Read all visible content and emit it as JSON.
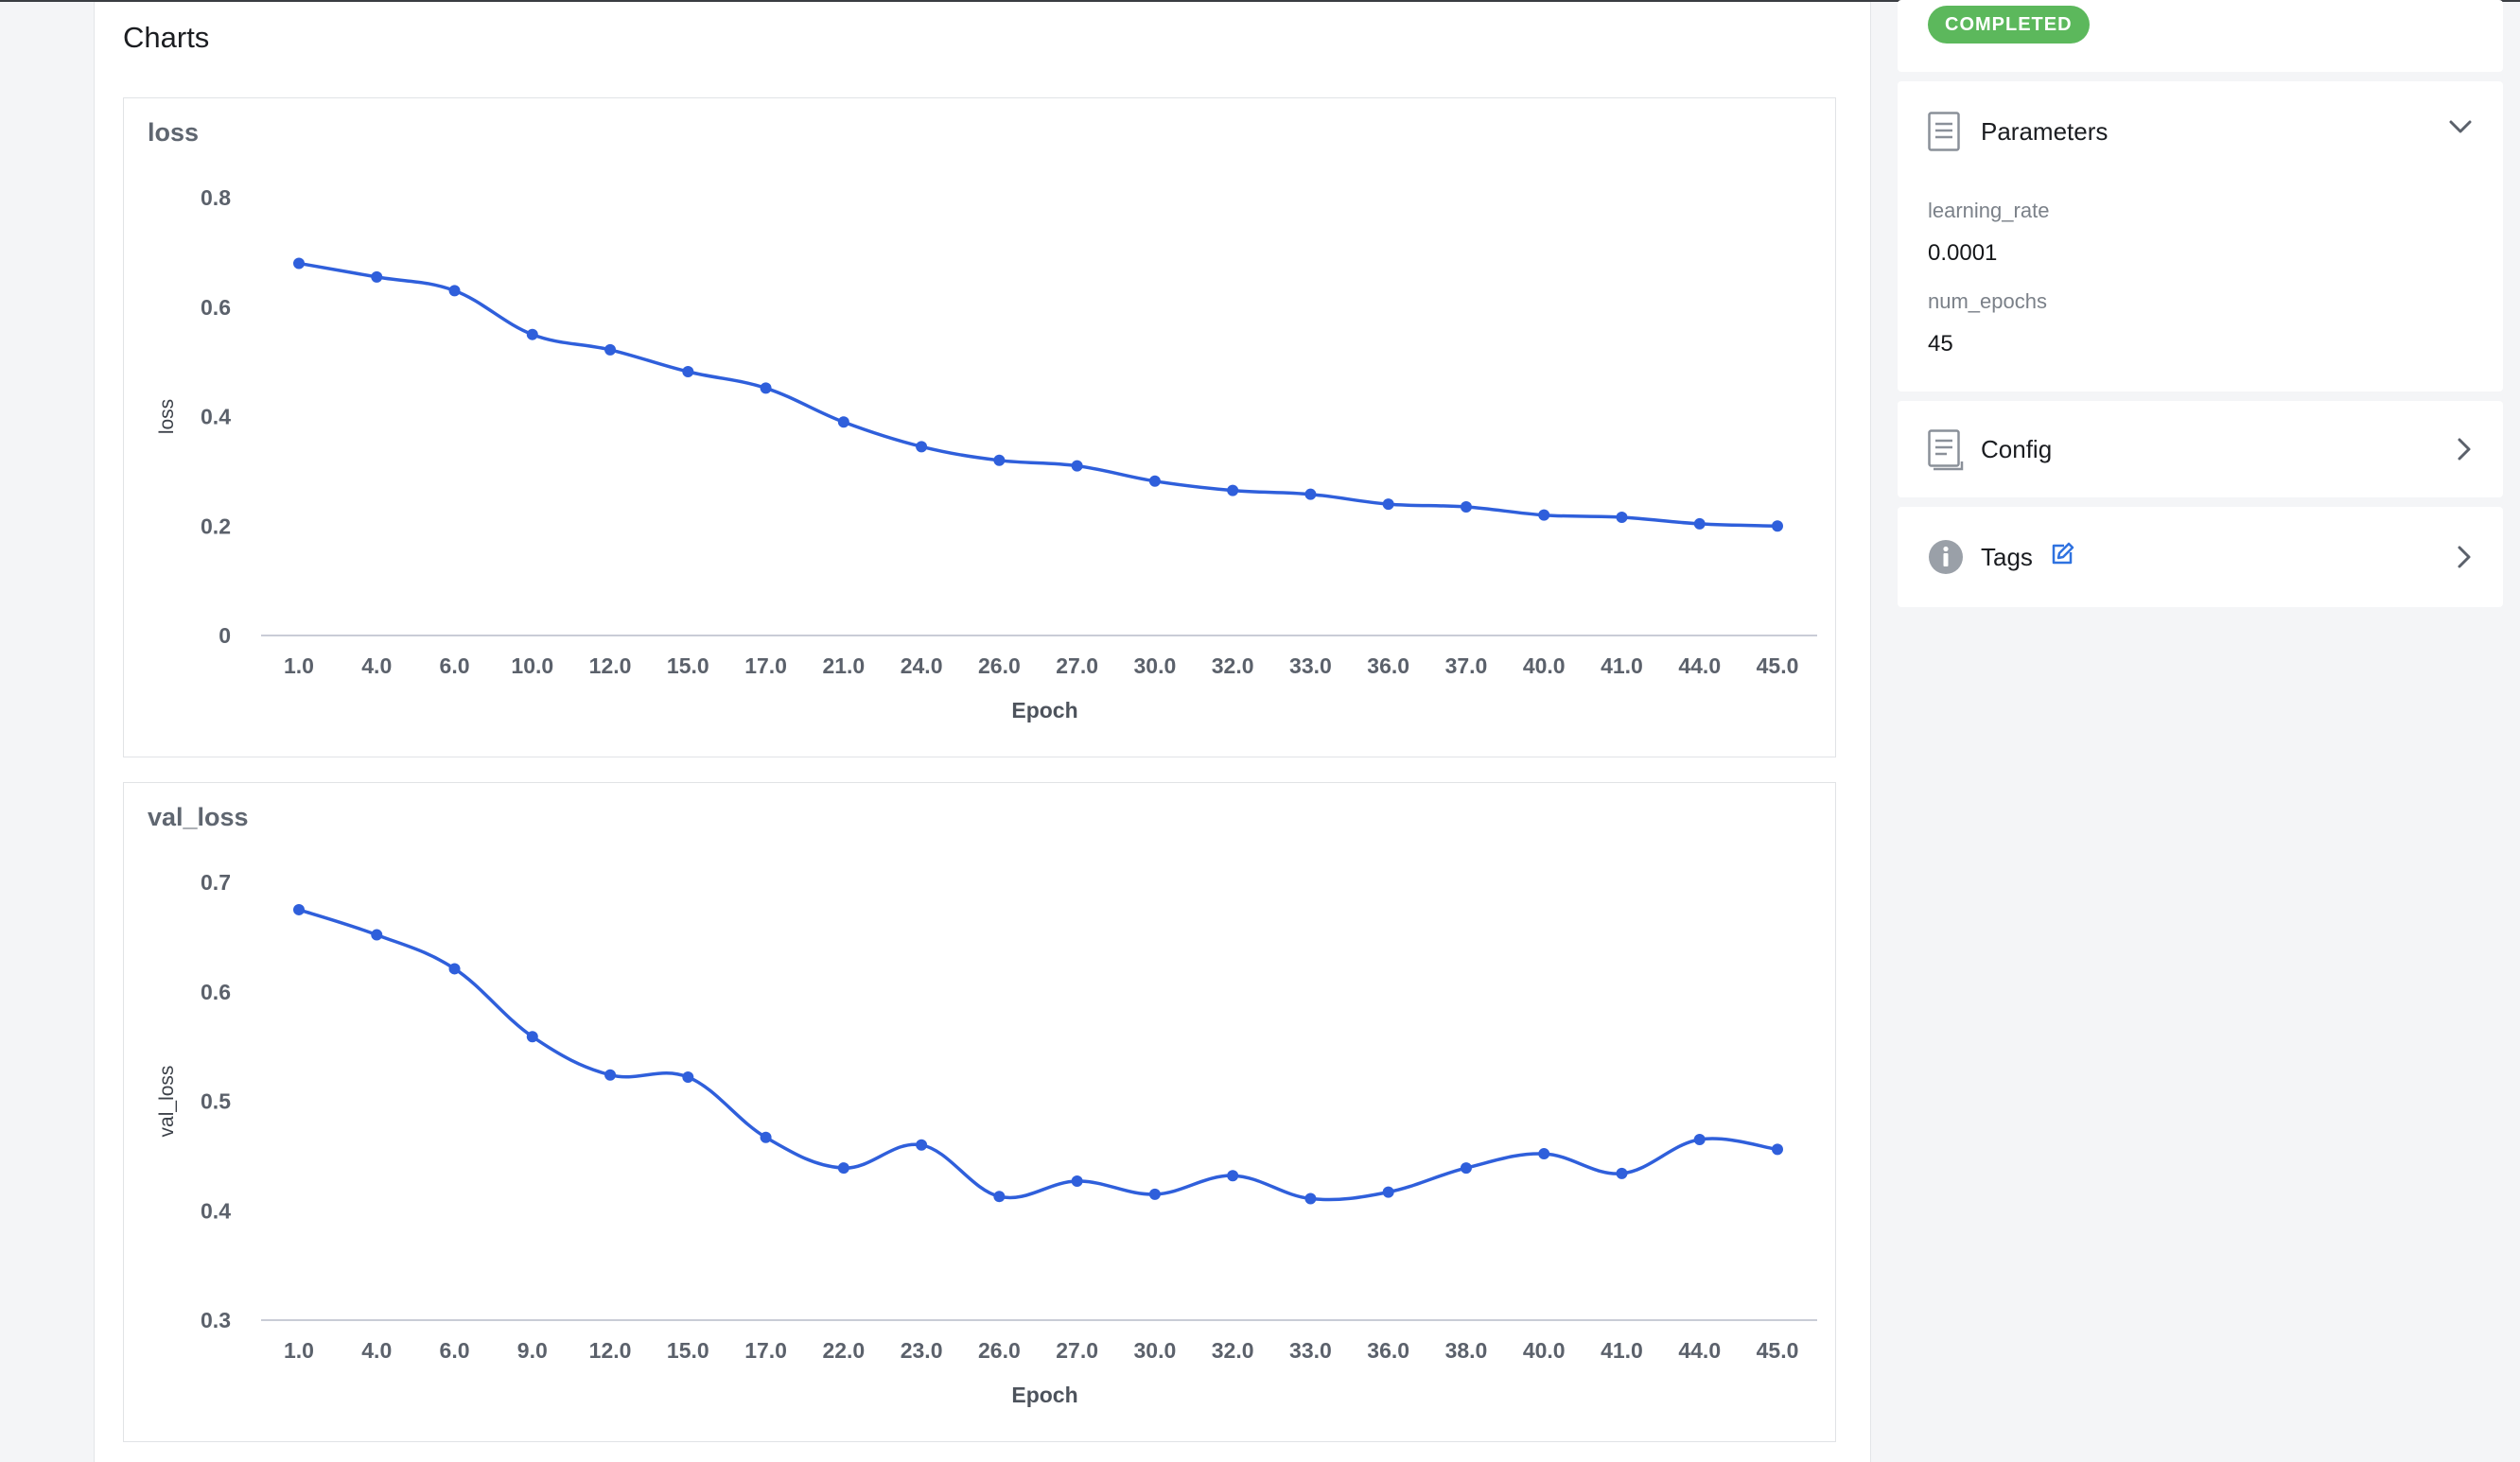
{
  "section_title": "Charts",
  "status_badge": "COMPLETED",
  "colors": {
    "series": "#2f5fdb",
    "badge": "#5cb85c"
  },
  "parameters": {
    "title": "Parameters",
    "items": [
      {
        "key": "learning_rate",
        "value": "0.0001"
      },
      {
        "key": "num_epochs",
        "value": "45"
      }
    ]
  },
  "config": {
    "title": "Config"
  },
  "tags": {
    "title": "Tags"
  },
  "icons": {
    "parameters": "document-icon",
    "parameters_toggle": "chevron-down-icon",
    "config": "document-icon",
    "config_toggle": "chevron-right-icon",
    "tags": "info-icon",
    "tags_edit": "edit-pencil-icon",
    "tags_toggle": "chevron-right-icon"
  },
  "chart_data": [
    {
      "type": "line",
      "title": "loss",
      "xlabel": "Epoch",
      "ylabel": "loss",
      "categories": [
        "1.0",
        "4.0",
        "6.0",
        "10.0",
        "12.0",
        "15.0",
        "17.0",
        "21.0",
        "24.0",
        "26.0",
        "27.0",
        "30.0",
        "32.0",
        "33.0",
        "36.0",
        "37.0",
        "40.0",
        "41.0",
        "44.0",
        "45.0"
      ],
      "series": [
        {
          "values": [
            0.68,
            0.655,
            0.63,
            0.55,
            0.522,
            0.482,
            0.452,
            0.39,
            0.345,
            0.32,
            0.31,
            0.282,
            0.265,
            0.258,
            0.24,
            0.235,
            0.22,
            0.216,
            0.204,
            0.2
          ]
        }
      ],
      "ylim": [
        0,
        0.8
      ],
      "yticks": [
        "0",
        "0.2",
        "0.4",
        "0.6",
        "0.8"
      ],
      "grid": false
    },
    {
      "type": "line",
      "title": "val_loss",
      "xlabel": "Epoch",
      "ylabel": "val_loss",
      "categories": [
        "1.0",
        "4.0",
        "6.0",
        "9.0",
        "12.0",
        "15.0",
        "17.0",
        "22.0",
        "23.0",
        "26.0",
        "27.0",
        "30.0",
        "32.0",
        "33.0",
        "36.0",
        "38.0",
        "40.0",
        "41.0",
        "44.0",
        "45.0"
      ],
      "series": [
        {
          "values": [
            0.675,
            0.652,
            0.621,
            0.559,
            0.524,
            0.522,
            0.467,
            0.439,
            0.46,
            0.413,
            0.427,
            0.415,
            0.432,
            0.411,
            0.417,
            0.439,
            0.452,
            0.434,
            0.465,
            0.456
          ]
        }
      ],
      "ylim": [
        0.3,
        0.7
      ],
      "yticks": [
        "0.3",
        "0.4",
        "0.5",
        "0.6",
        "0.7"
      ],
      "grid": false
    }
  ]
}
